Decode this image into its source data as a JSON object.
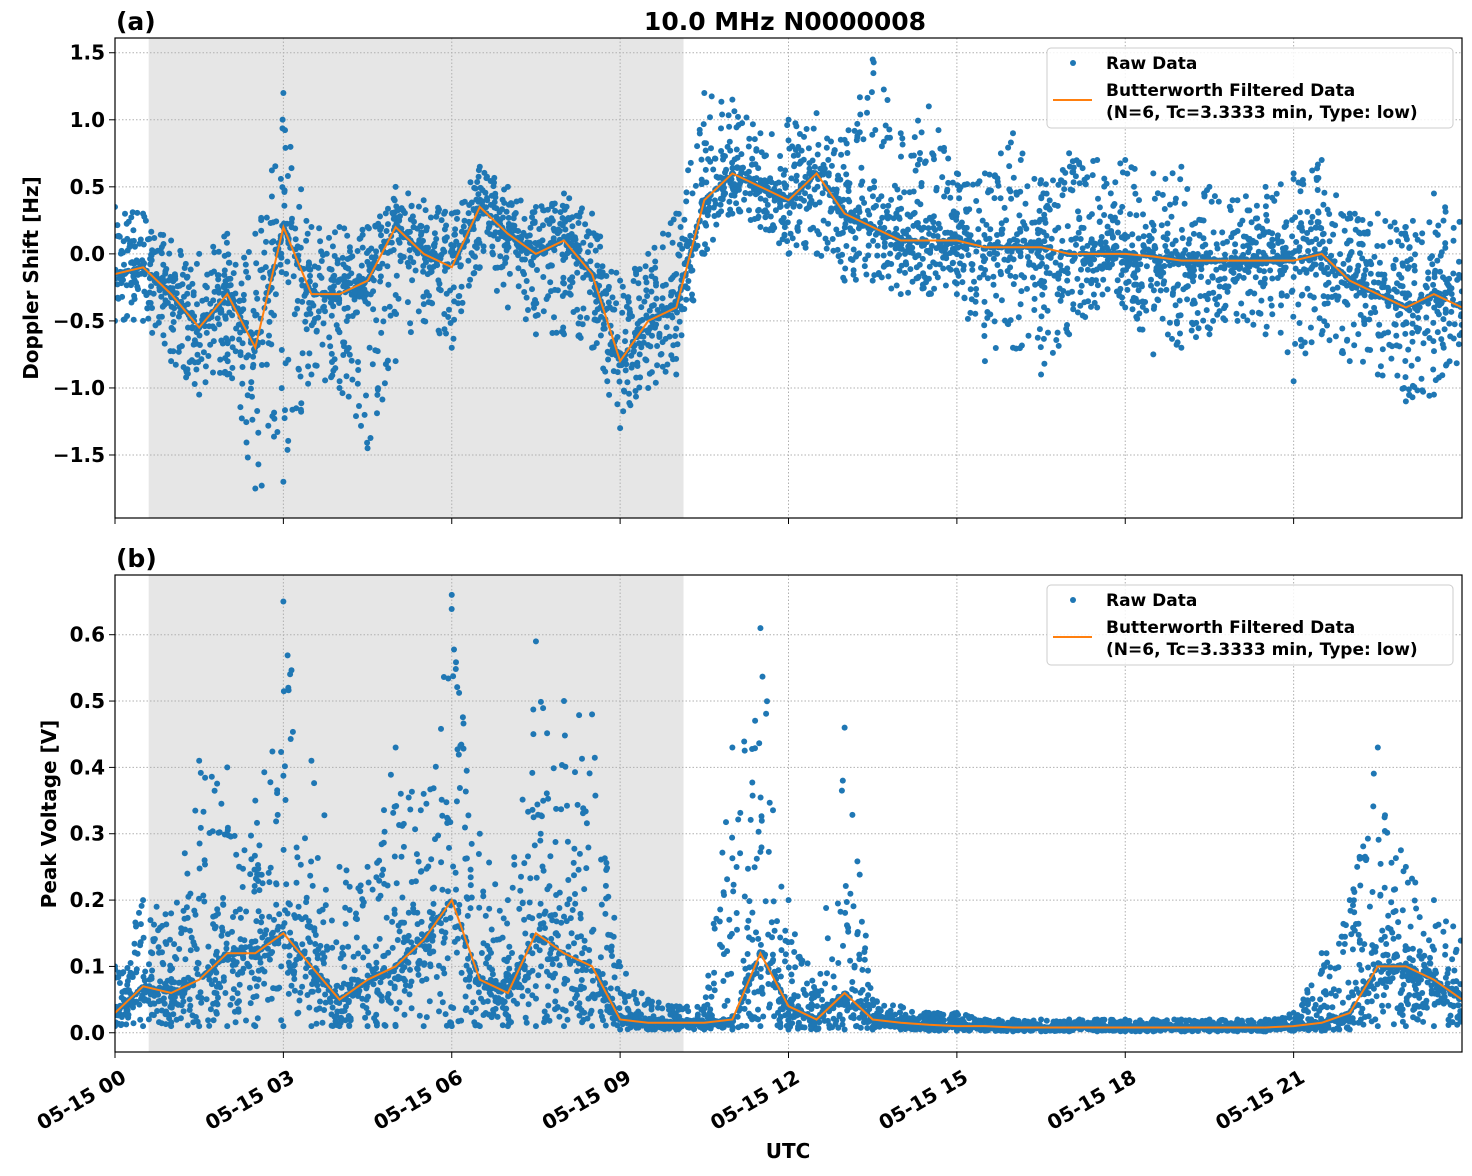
{
  "title": "10.0 MHz N0000008",
  "xlabel": "UTC",
  "colors": {
    "raw": "#1f77b4",
    "filtered": "#ff7f0e",
    "shade": "#e6e6e6"
  },
  "chart_data": [
    {
      "type": "scatter",
      "panel_label": "(a)",
      "ylabel": "Doppler Shift [Hz]",
      "ylim": [
        -1.97,
        1.61
      ],
      "yticks": [
        -1.5,
        -1.0,
        -0.5,
        0.0,
        0.5,
        1.0,
        1.5
      ],
      "ytick_labels": [
        "−1.5",
        "−1.0",
        "−0.5",
        "0.0",
        "0.5",
        "1.0",
        "1.5"
      ],
      "xlim_hours": [
        0,
        24
      ],
      "xticks_hours": [
        0,
        3,
        6,
        9,
        12,
        15,
        18,
        21
      ],
      "xtick_labels": [
        "05-15 00",
        "05-15 03",
        "05-15 06",
        "05-15 09",
        "05-15 12",
        "05-15 15",
        "05-15 18",
        "05-15 21"
      ],
      "grid": true,
      "legend_position": "top-right",
      "shaded_interval_hours": [
        0.6,
        10.13
      ],
      "x_hours": [
        0,
        0.5,
        1,
        1.5,
        2,
        2.5,
        3,
        3.5,
        4,
        4.5,
        5,
        5.5,
        6,
        6.5,
        7,
        7.5,
        8,
        8.5,
        9,
        9.5,
        10,
        10.5,
        11,
        11.5,
        12,
        12.5,
        13,
        13.5,
        14,
        14.5,
        15,
        15.5,
        16,
        16.5,
        17,
        17.5,
        18,
        18.5,
        19,
        19.5,
        20,
        20.5,
        21,
        21.5,
        22,
        22.5,
        23,
        23.5,
        24
      ],
      "series": [
        {
          "name": "Raw Data",
          "kind": "scatter-envelope",
          "min": [
            -0.5,
            -0.5,
            -0.8,
            -1.05,
            -0.9,
            -1.75,
            -1.7,
            -0.9,
            -1.0,
            -1.45,
            -0.8,
            -0.5,
            -0.7,
            -0.1,
            -0.4,
            -0.6,
            -0.6,
            -0.7,
            -1.3,
            -1.0,
            -0.9,
            0.0,
            0.3,
            0.2,
            0.0,
            0.0,
            -0.2,
            -0.2,
            -0.3,
            -0.3,
            -0.3,
            -0.8,
            -0.7,
            -0.9,
            -0.6,
            -0.4,
            -0.4,
            -0.75,
            -0.7,
            -0.6,
            -0.5,
            -0.6,
            -0.95,
            -0.6,
            -0.8,
            -0.9,
            -1.1,
            -1.05,
            -0.8
          ],
          "max": [
            0.35,
            0.3,
            0.1,
            0.0,
            0.15,
            0.15,
            1.2,
            0.2,
            0.2,
            0.2,
            0.5,
            0.4,
            0.3,
            0.65,
            0.5,
            0.35,
            0.45,
            0.3,
            -0.2,
            0.0,
            0.3,
            1.2,
            1.15,
            0.9,
            1.0,
            1.05,
            0.85,
            1.45,
            0.9,
            1.1,
            0.6,
            0.6,
            0.9,
            0.55,
            0.75,
            0.7,
            0.7,
            0.6,
            0.65,
            0.5,
            0.4,
            0.5,
            0.6,
            0.7,
            0.3,
            0.3,
            0.2,
            0.45,
            0.3
          ]
        },
        {
          "name": "Butterworth Filtered Data",
          "name_line2": "(N=6, Tc=3.3333 min, Type: low)",
          "kind": "line",
          "values": [
            -0.15,
            -0.1,
            -0.3,
            -0.55,
            -0.3,
            -0.7,
            0.2,
            -0.3,
            -0.3,
            -0.2,
            0.2,
            0.0,
            -0.1,
            0.35,
            0.15,
            0.0,
            0.1,
            -0.15,
            -0.8,
            -0.5,
            -0.4,
            0.4,
            0.6,
            0.5,
            0.4,
            0.6,
            0.3,
            0.2,
            0.1,
            0.1,
            0.1,
            0.05,
            0.05,
            0.05,
            0.0,
            0.0,
            0.0,
            -0.02,
            -0.05,
            -0.05,
            -0.05,
            -0.05,
            -0.05,
            0.0,
            -0.2,
            -0.3,
            -0.4,
            -0.3,
            -0.4
          ]
        }
      ]
    },
    {
      "type": "scatter",
      "panel_label": "(b)",
      "ylabel": "Peak Voltage [V]",
      "ylim": [
        -0.029,
        0.69
      ],
      "yticks": [
        0.0,
        0.1,
        0.2,
        0.3,
        0.4,
        0.5,
        0.6
      ],
      "ytick_labels": [
        "0.0",
        "0.1",
        "0.2",
        "0.3",
        "0.4",
        "0.5",
        "0.6"
      ],
      "xlim_hours": [
        0,
        24
      ],
      "xticks_hours": [
        0,
        3,
        6,
        9,
        12,
        15,
        18,
        21
      ],
      "xtick_labels": [
        "05-15 00",
        "05-15 03",
        "05-15 06",
        "05-15 09",
        "05-15 12",
        "05-15 15",
        "05-15 18",
        "05-15 21"
      ],
      "grid": true,
      "legend_position": "top-right",
      "shaded_interval_hours": [
        0.6,
        10.13
      ],
      "x_hours": [
        0,
        0.5,
        1,
        1.5,
        2,
        2.5,
        3,
        3.5,
        4,
        4.5,
        5,
        5.5,
        6,
        6.5,
        7,
        7.5,
        8,
        8.5,
        9,
        9.5,
        10,
        10.5,
        11,
        11.5,
        12,
        12.5,
        13,
        13.5,
        14,
        14.5,
        15,
        15.5,
        16,
        16.5,
        17,
        17.5,
        18,
        18.5,
        19,
        19.5,
        20,
        20.5,
        21,
        21.5,
        22,
        22.5,
        23,
        23.5,
        24
      ],
      "series": [
        {
          "name": "Raw Data",
          "kind": "scatter-envelope",
          "min": [
            0.01,
            0.01,
            0.01,
            0.01,
            0.01,
            0.01,
            0.01,
            0.01,
            0.01,
            0.01,
            0.01,
            0.01,
            0.01,
            0.01,
            0.01,
            0.01,
            0.01,
            0.01,
            0.005,
            0.005,
            0.005,
            0.005,
            0.005,
            0.01,
            0.005,
            0.005,
            0.005,
            0.005,
            0.005,
            0.003,
            0.003,
            0.003,
            0.002,
            0.002,
            0.002,
            0.002,
            0.002,
            0.002,
            0.002,
            0.002,
            0.002,
            0.002,
            0.003,
            0.003,
            0.005,
            0.01,
            0.01,
            0.01,
            0.01
          ],
          "max": [
            0.1,
            0.2,
            0.18,
            0.41,
            0.4,
            0.35,
            0.65,
            0.41,
            0.25,
            0.25,
            0.43,
            0.36,
            0.66,
            0.3,
            0.2,
            0.59,
            0.5,
            0.48,
            0.1,
            0.05,
            0.04,
            0.04,
            0.43,
            0.61,
            0.2,
            0.06,
            0.46,
            0.05,
            0.04,
            0.03,
            0.03,
            0.02,
            0.02,
            0.02,
            0.02,
            0.02,
            0.02,
            0.02,
            0.02,
            0.02,
            0.02,
            0.02,
            0.03,
            0.12,
            0.2,
            0.43,
            0.25,
            0.2,
            0.15
          ]
        },
        {
          "name": "Butterworth Filtered Data",
          "name_line2": "(N=6, Tc=3.3333 min, Type: low)",
          "kind": "line",
          "values": [
            0.03,
            0.07,
            0.06,
            0.08,
            0.12,
            0.12,
            0.15,
            0.1,
            0.05,
            0.08,
            0.1,
            0.14,
            0.2,
            0.08,
            0.06,
            0.15,
            0.12,
            0.1,
            0.02,
            0.015,
            0.015,
            0.015,
            0.02,
            0.12,
            0.04,
            0.02,
            0.06,
            0.02,
            0.015,
            0.012,
            0.01,
            0.01,
            0.008,
            0.008,
            0.008,
            0.008,
            0.008,
            0.008,
            0.008,
            0.008,
            0.008,
            0.008,
            0.01,
            0.015,
            0.03,
            0.1,
            0.1,
            0.08,
            0.05
          ]
        }
      ]
    }
  ]
}
